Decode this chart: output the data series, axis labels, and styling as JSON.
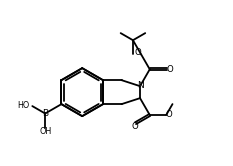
{
  "bg_color": "#ffffff",
  "line_color": "#000000",
  "line_width": 1.3,
  "figsize": [
    2.33,
    1.66
  ],
  "dpi": 100,
  "xlim": [
    0,
    10
  ],
  "ylim": [
    0,
    7.2
  ]
}
